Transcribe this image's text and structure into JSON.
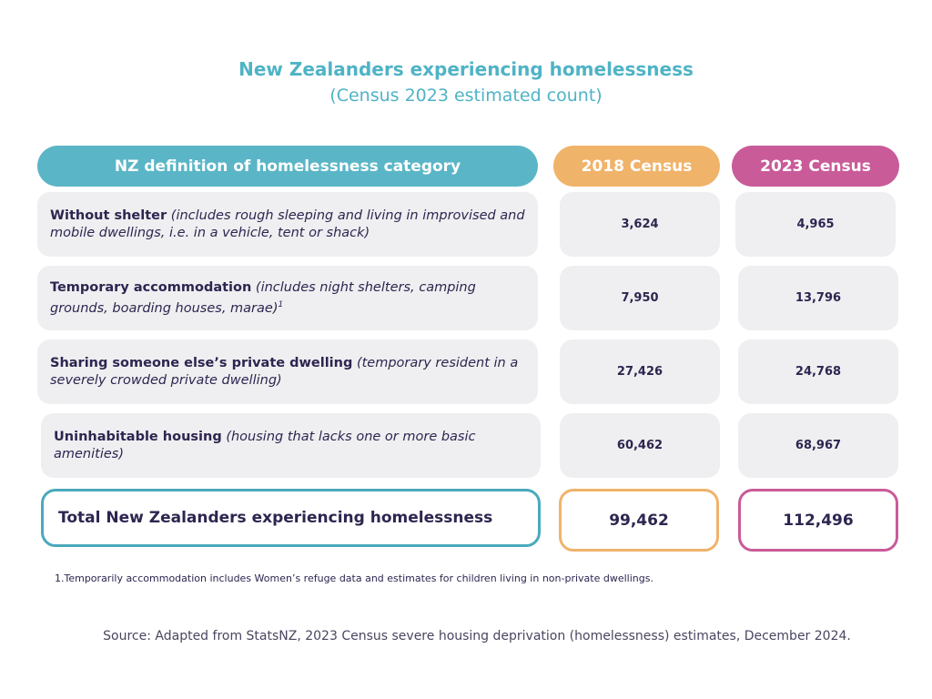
{
  "title": "New Zealanders experiencing homelessness",
  "subtitle": "(Census 2023 estimated count)",
  "headers": {
    "category": "NZ definition of homelessness category",
    "census_2018": "2018 Census",
    "census_2023": "2023 Census"
  },
  "rows": [
    {
      "label": "Without shelter",
      "description": "(includes rough sleeping and living in improvised and mobile dwellings, i.e. in a vehicle, tent or shack)",
      "superscript": "",
      "v2018": "3,624",
      "v2023": "4,965"
    },
    {
      "label": "Temporary accommodation",
      "description": "(includes night shelters, camping grounds, boarding houses, marae)",
      "superscript": "1",
      "v2018": "7,950",
      "v2023": "13,796"
    },
    {
      "label": "Sharing someone else’s private dwelling",
      "description": "(temporary resident in a severely crowded private dwelling)",
      "superscript": "",
      "v2018": "27,426",
      "v2023": "24,768"
    },
    {
      "label": "Uninhabitable housing",
      "description": "(housing that lacks one or more basic amenities)",
      "superscript": "",
      "v2018": "60,462",
      "v2023": "68,967"
    }
  ],
  "total": {
    "label": "Total New Zealanders experiencing homelessness",
    "v2018": "99,462",
    "v2023": "112,496"
  },
  "footnote": "1.Temporarily accommodation includes Women’s refuge data and estimates for children living in non-private dwellings.",
  "source": "Source: Adapted from StatsNZ, 2023 Census severe housing deprivation (homelessness) estimates, December 2024.",
  "colors": {
    "teal": "#5ab6c7",
    "orange": "#f0b36a",
    "magenta": "#c95b99",
    "text": "#2e2550",
    "cell": "#efeff1"
  }
}
